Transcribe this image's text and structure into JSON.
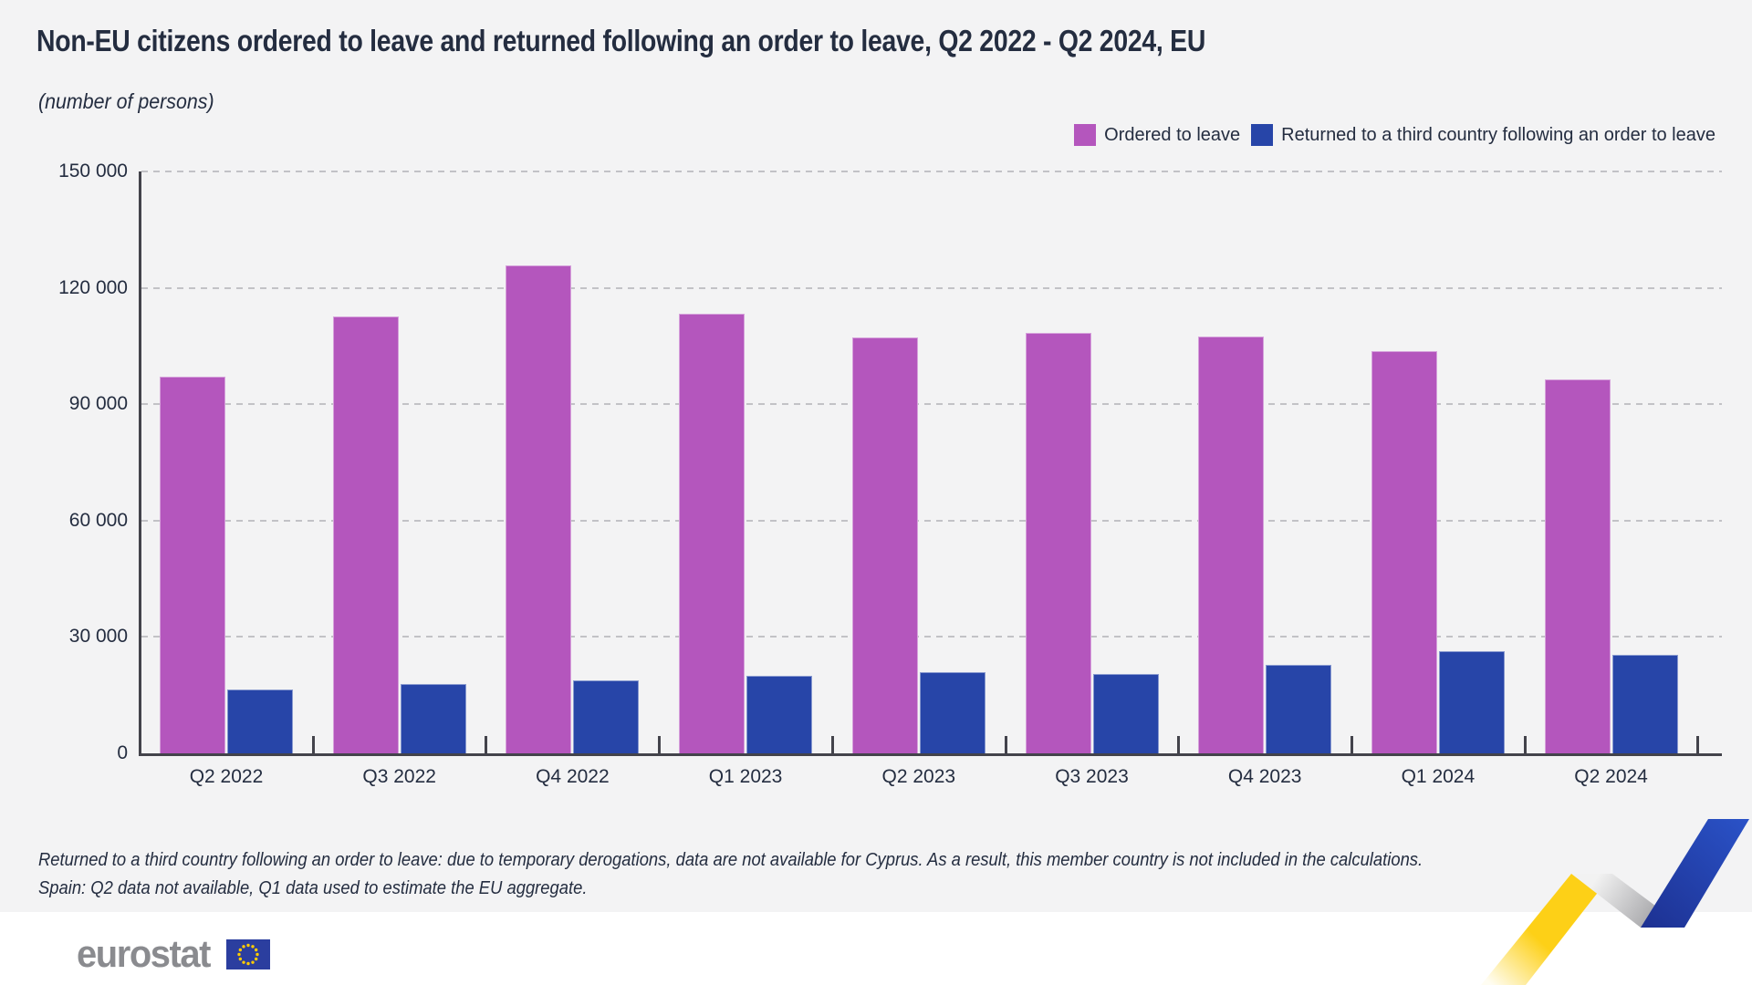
{
  "header": {
    "title": "Non-EU citizens ordered to leave and returned following an order to leave, Q2 2022 - Q2 2024, EU",
    "subtitle": "(number of persons)"
  },
  "chart_data": {
    "type": "bar",
    "categories": [
      "Q2 2022",
      "Q3 2022",
      "Q4 2022",
      "Q1 2023",
      "Q2 2023",
      "Q3 2023",
      "Q4 2023",
      "Q1 2024",
      "Q2 2024"
    ],
    "series": [
      {
        "name": "Ordered to leave",
        "color": "#b456bd",
        "values": [
          97000,
          112600,
          125800,
          113300,
          107200,
          108300,
          107500,
          103700,
          96300
        ]
      },
      {
        "name": "Returned to a third country following an order to leave",
        "color": "#2745a8",
        "values": [
          16500,
          17800,
          18700,
          19900,
          20900,
          20500,
          22800,
          26300,
          25300
        ]
      }
    ],
    "title": "Non-EU citizens ordered to leave and returned following an order to leave, Q2 2022 - Q2 2024, EU",
    "xlabel": "",
    "ylabel": "number of persons",
    "ylim": [
      0,
      150000
    ],
    "ytick_interval": 30000,
    "ytick_labels": [
      "0",
      "30 000",
      "60 000",
      "90 000",
      "120 000",
      "150 000"
    ],
    "grid": "horizontal-dashed",
    "legend_position": "top-right"
  },
  "footer": {
    "footnotes": [
      "Returned to a third country following an order to leave: due to temporary derogations, data are not available for Cyprus. As a result, this member country is not included in the calculations.",
      "Spain: Q2 data not available, Q1 data used to estimate the EU aggregate."
    ],
    "logo_text": "eurostat"
  },
  "icons": {
    "eu_flag": "eu-flag-icon",
    "ribbon": "zigzag-ribbon-graphic"
  },
  "colors": {
    "background": "#f3f3f4",
    "text": "#242d40",
    "axis": "#43434b",
    "gridline": "#c2c2c6",
    "ordered_bar": "#b456bd",
    "returned_bar": "#2745a8",
    "ribbon_yellow": "#fdd017",
    "ribbon_gray": "#9a9a9e",
    "ribbon_blue": "#2449b6",
    "logo_gray": "#8a8b8f",
    "flag_blue": "#2b3e9f",
    "star_yellow": "#ffcc00"
  }
}
